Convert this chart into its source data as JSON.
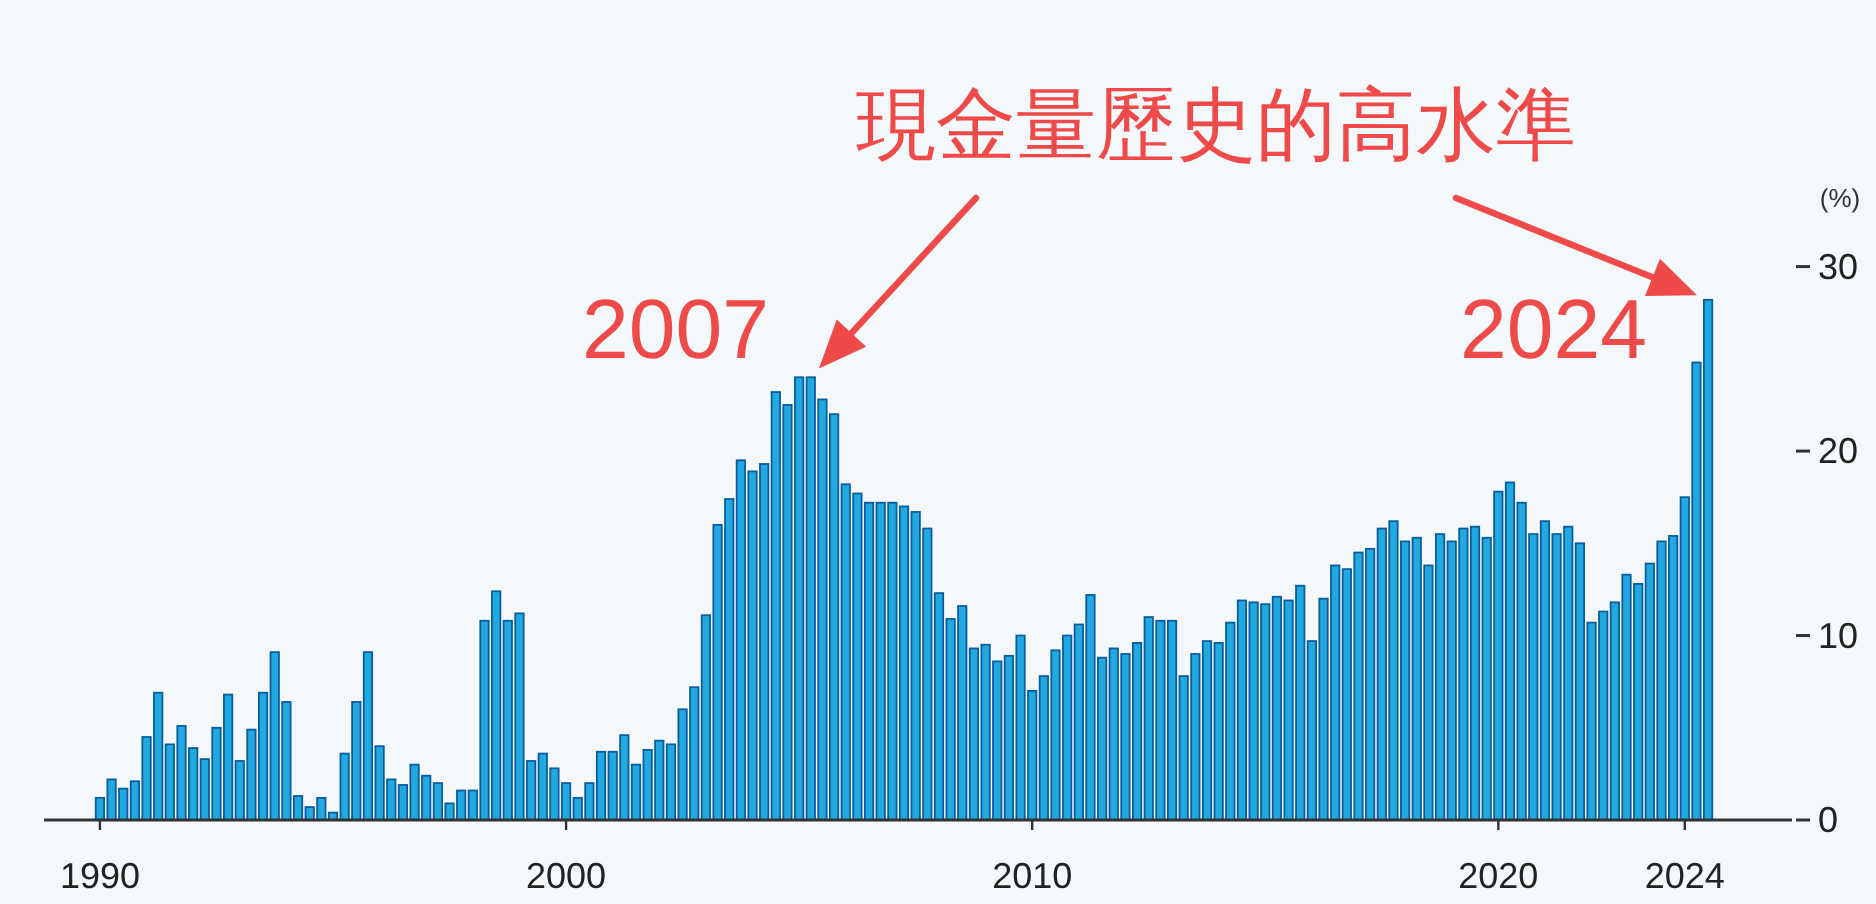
{
  "chart_data": {
    "type": "bar",
    "annotations": [
      "現金量歷史的高水準",
      {
        "text": "2007",
        "x": 2005.25,
        "y": 24.0
      },
      {
        "text": "2024",
        "x": 2024.5,
        "y": 28.2
      }
    ],
    "ylabel": "(%)",
    "color": "#23a9e1",
    "xlim": [
      1988.8,
      2026.3
    ],
    "xticks": [
      1990,
      2000,
      2010,
      2020,
      2024
    ],
    "ylim": [
      0,
      30
    ],
    "yticks": [
      0,
      10,
      20,
      30
    ],
    "x": [
      1990,
      1990.25,
      1990.5,
      1990.75,
      1991,
      1991.25,
      1991.5,
      1991.75,
      1992,
      1992.25,
      1992.5,
      1992.75,
      1993,
      1993.25,
      1993.5,
      1993.75,
      1994,
      1994.25,
      1994.5,
      1994.75,
      1995,
      1995.25,
      1995.5,
      1995.75,
      1996,
      1996.25,
      1996.5,
      1996.75,
      1997,
      1997.25,
      1997.5,
      1997.75,
      1998,
      1998.25,
      1998.5,
      1998.75,
      1999,
      1999.25,
      1999.5,
      1999.75,
      2000,
      2000.25,
      2000.5,
      2000.75,
      2001,
      2001.25,
      2001.5,
      2001.75,
      2002,
      2002.25,
      2002.5,
      2002.75,
      2003,
      2003.25,
      2003.5,
      2003.75,
      2004,
      2004.25,
      2004.5,
      2004.75,
      2005,
      2005.25,
      2005.5,
      2005.75,
      2006,
      2006.25,
      2006.5,
      2006.75,
      2007,
      2007.25,
      2007.5,
      2007.75,
      2008,
      2008.25,
      2008.5,
      2008.75,
      2009,
      2009.25,
      2009.5,
      2009.75,
      2010,
      2010.25,
      2010.5,
      2010.75,
      2011,
      2011.25,
      2011.5,
      2011.75,
      2012,
      2012.25,
      2012.5,
      2012.75,
      2013,
      2013.25,
      2013.5,
      2013.75,
      2014,
      2014.25,
      2014.5,
      2014.75,
      2015,
      2015.25,
      2015.5,
      2015.75,
      2016,
      2016.25,
      2016.5,
      2016.75,
      2017,
      2017.25,
      2017.5,
      2017.75,
      2018,
      2018.25,
      2018.5,
      2018.75,
      2019,
      2019.25,
      2019.5,
      2019.75,
      2020,
      2020.25,
      2020.5,
      2020.75,
      2021,
      2021.25,
      2021.5,
      2021.75,
      2022,
      2022.25,
      2022.5,
      2022.75,
      2023,
      2023.25,
      2023.5,
      2023.75,
      2024,
      2024.25,
      2024.5
    ],
    "values": [
      1.2,
      2.2,
      1.7,
      2.1,
      4.5,
      6.9,
      4.1,
      5.1,
      3.9,
      3.3,
      5.0,
      6.8,
      3.2,
      4.9,
      6.9,
      9.1,
      6.4,
      1.3,
      0.7,
      1.2,
      0.4,
      3.6,
      6.4,
      9.1,
      4.0,
      2.2,
      1.9,
      3.0,
      2.4,
      2.0,
      0.9,
      1.6,
      1.6,
      10.8,
      12.4,
      10.8,
      11.2,
      3.2,
      3.6,
      2.8,
      2.0,
      1.2,
      2.0,
      3.7,
      3.7,
      4.6,
      3.0,
      3.8,
      4.3,
      4.1,
      6.0,
      7.2,
      11.1,
      16.0,
      17.4,
      19.5,
      18.9,
      19.3,
      23.2,
      22.5,
      24.0,
      24.0,
      22.8,
      22.0,
      18.2,
      17.7,
      17.2,
      17.2,
      17.2,
      17.0,
      16.7,
      15.8,
      12.3,
      10.9,
      11.6,
      9.3,
      9.5,
      8.6,
      8.9,
      10.0,
      7.0,
      7.8,
      9.2,
      10.0,
      10.6,
      12.2,
      8.8,
      9.3,
      9.0,
      9.6,
      11.0,
      10.8,
      10.8,
      7.8,
      9.0,
      9.7,
      9.6,
      10.7,
      11.9,
      11.8,
      11.7,
      12.1,
      11.9,
      12.7,
      9.7,
      12.0,
      13.8,
      13.6,
      14.5,
      14.7,
      15.8,
      16.2,
      15.1,
      15.3,
      13.8,
      15.5,
      15.1,
      15.8,
      15.9,
      15.3,
      17.8,
      18.3,
      17.2,
      15.5,
      16.2,
      15.5,
      15.9,
      15.0,
      10.7,
      11.3,
      11.8,
      13.3,
      12.8,
      13.9,
      15.1,
      15.4,
      17.5,
      24.8,
      28.2
    ]
  }
}
